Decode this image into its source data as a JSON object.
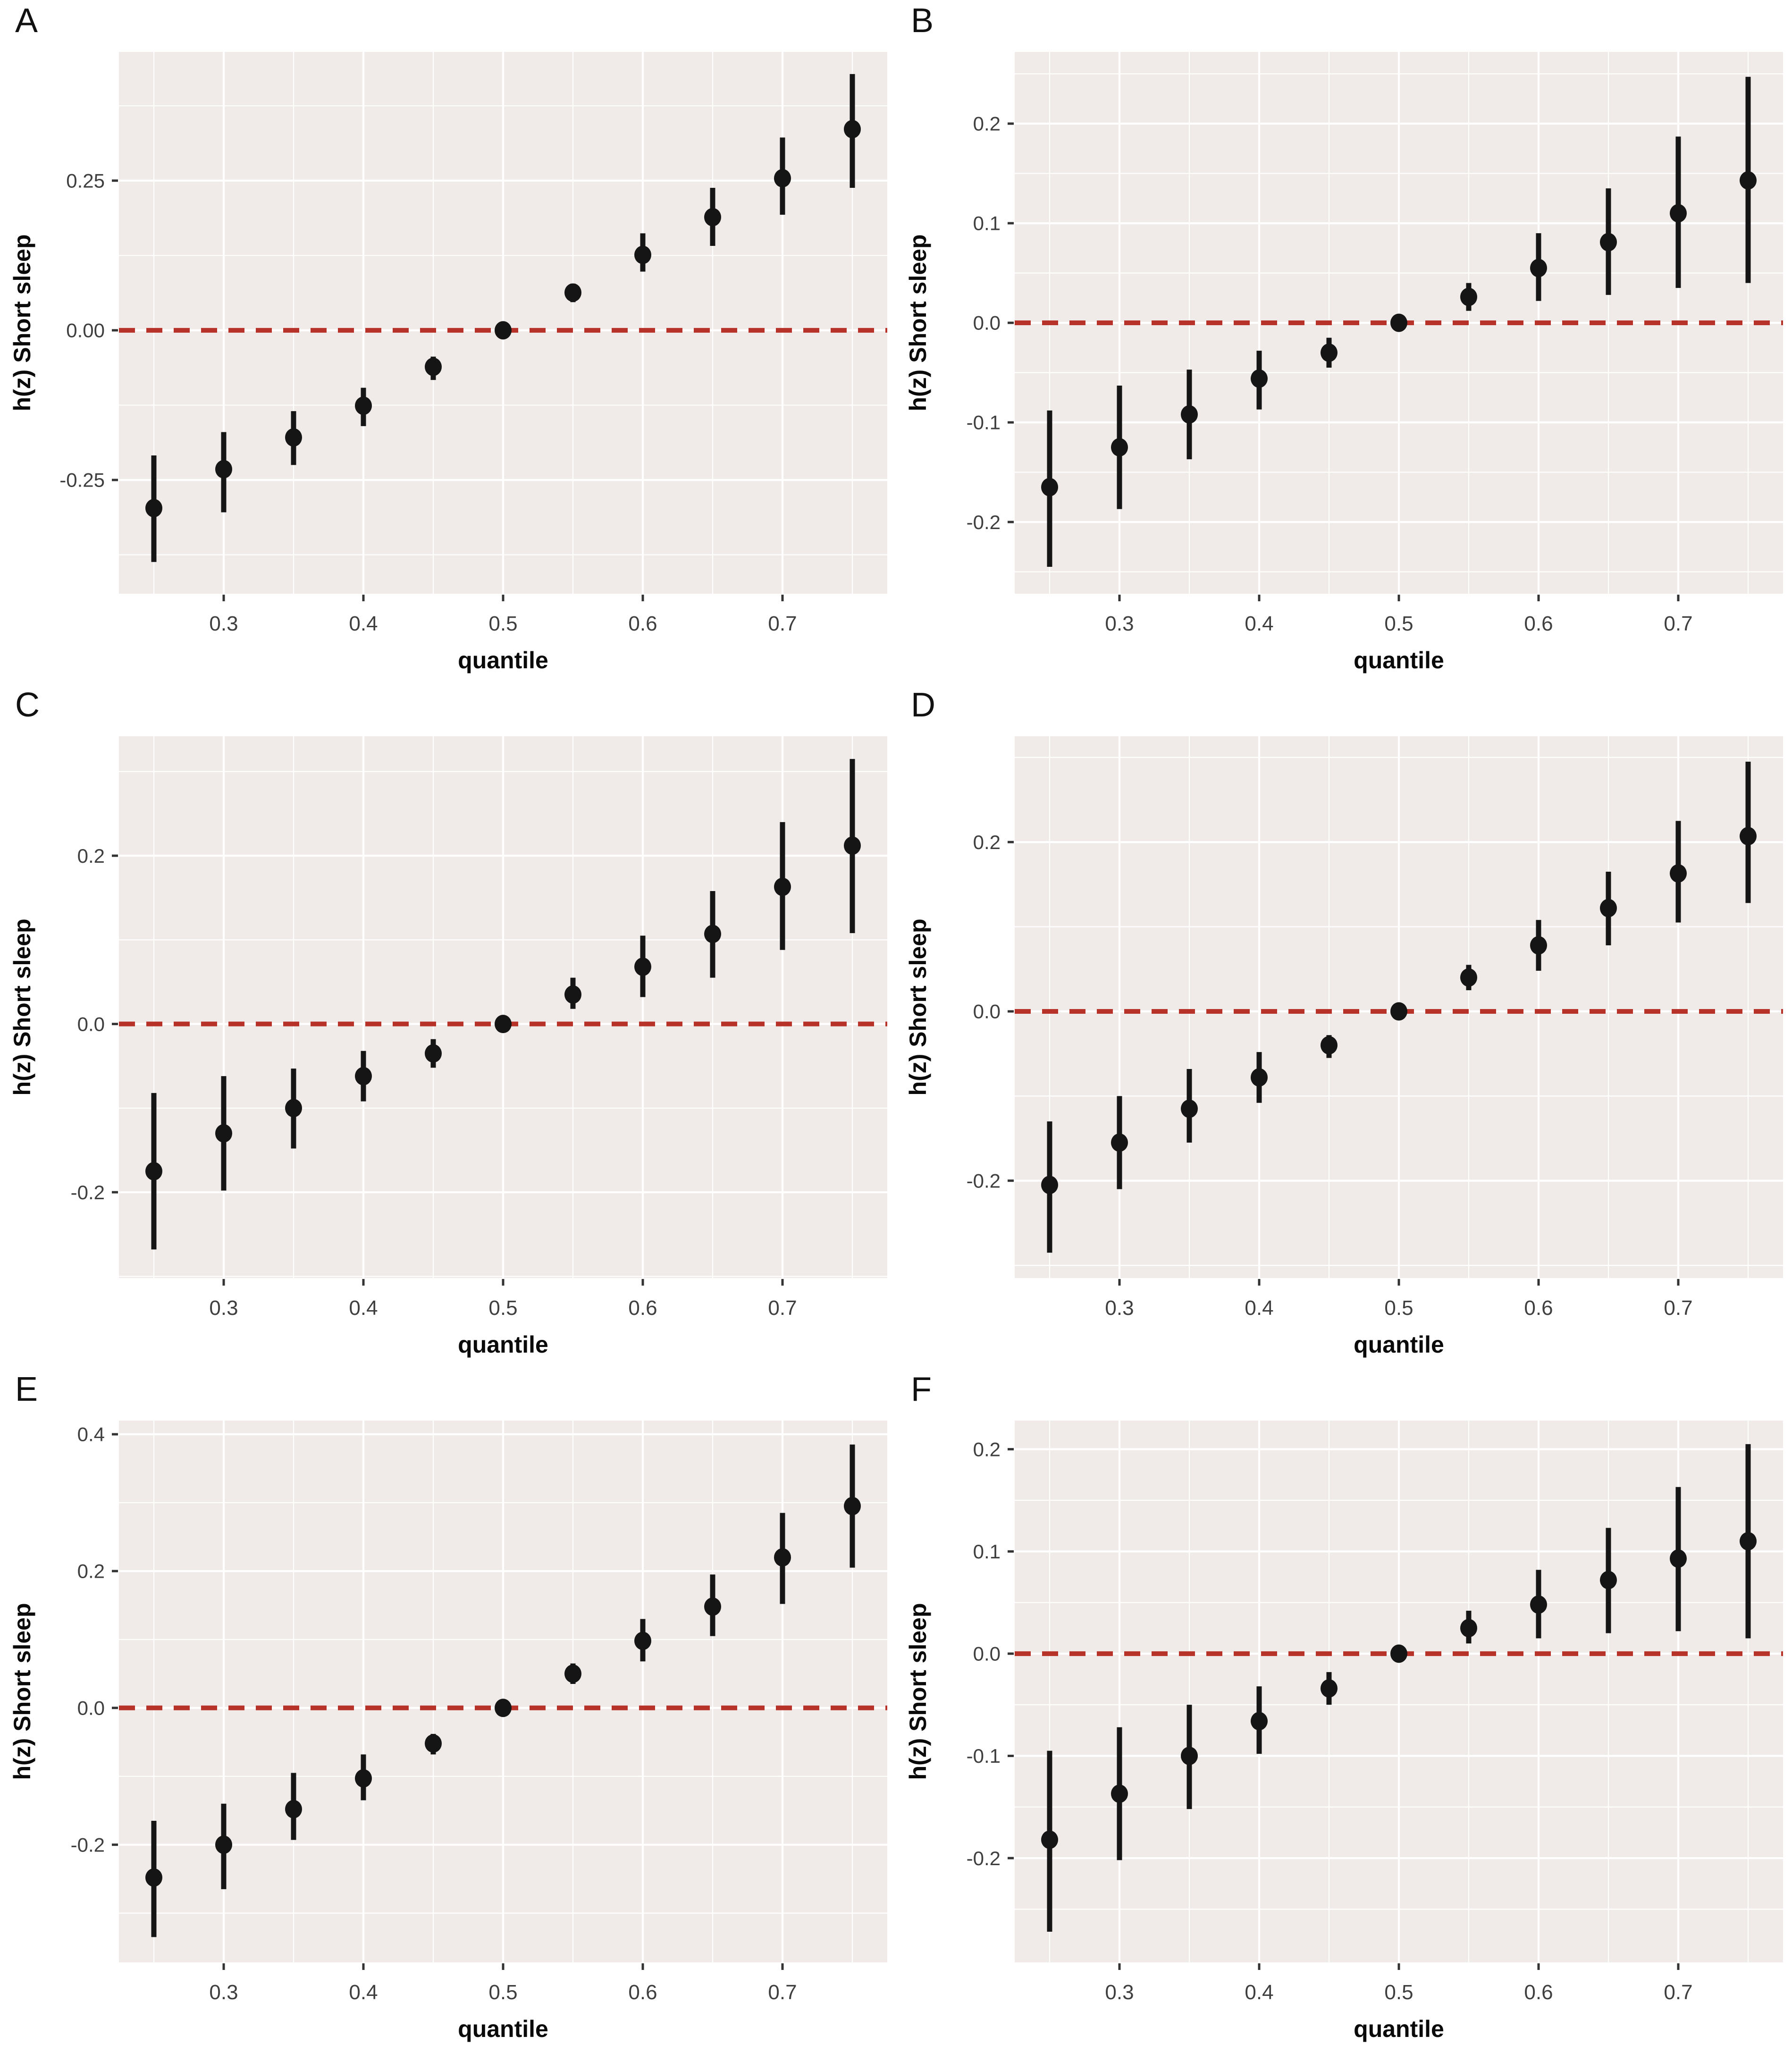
{
  "figure": {
    "title": "",
    "layout": "2x3-grid-of-quantile-pointrange-plots"
  },
  "style": {
    "page_background": "#ffffff",
    "panel_background": "#f0ebe8",
    "grid_color": "#ffffff",
    "point_color": "#151515",
    "errorbar_color": "#151515",
    "refline_color": "#b73228",
    "tick_mark_color": "#333333",
    "tick_label_color": "#3f3f3f",
    "axis_title_color": "#0a0a0a",
    "panel_letter_color": "#111111"
  },
  "chart_data": [
    {
      "type": "scatter",
      "panel": "A",
      "title": "",
      "xlabel": "quantile",
      "ylabel": "h(z) Short sleep",
      "legend": "none",
      "grid": true,
      "refline_y": 0,
      "refline_style": "dashed-red",
      "x": [
        0.25,
        0.3,
        0.35,
        0.4,
        0.45,
        0.5,
        0.55,
        0.6,
        0.65,
        0.7,
        0.75
      ],
      "y": [
        -0.297,
        -0.232,
        -0.179,
        -0.126,
        -0.061,
        0.0,
        0.063,
        0.126,
        0.189,
        0.254,
        0.336
      ],
      "y_lower": [
        -0.387,
        -0.304,
        -0.225,
        -0.16,
        -0.083,
        -0.004,
        0.047,
        0.098,
        0.141,
        0.193,
        0.238
      ],
      "y_upper": [
        -0.209,
        -0.17,
        -0.135,
        -0.096,
        -0.044,
        0.004,
        0.078,
        0.162,
        0.238,
        0.322,
        0.428
      ],
      "xlim": [
        0.225,
        0.775
      ],
      "ylim": [
        -0.44,
        0.465
      ],
      "x_ticks": [
        0.3,
        0.4,
        0.5,
        0.6,
        0.7
      ],
      "x_tick_labels": [
        "0.3",
        "0.4",
        "0.5",
        "0.6",
        "0.7"
      ],
      "x_minor": [
        0.25,
        0.35,
        0.45,
        0.55,
        0.65,
        0.75
      ],
      "y_ticks": [
        -0.25,
        0.0,
        0.25
      ],
      "y_tick_labels": [
        "-0.25",
        "0.00",
        "0.25"
      ]
    },
    {
      "type": "scatter",
      "panel": "B",
      "title": "",
      "xlabel": "quantile",
      "ylabel": "h(z) Short sleep",
      "legend": "none",
      "grid": true,
      "refline_y": 0,
      "refline_style": "dashed-red",
      "x": [
        0.25,
        0.3,
        0.35,
        0.4,
        0.45,
        0.5,
        0.55,
        0.6,
        0.65,
        0.7,
        0.75
      ],
      "y": [
        -0.165,
        -0.125,
        -0.092,
        -0.056,
        -0.03,
        0.0,
        0.026,
        0.055,
        0.081,
        0.11,
        0.143
      ],
      "y_lower": [
        -0.245,
        -0.187,
        -0.137,
        -0.087,
        -0.045,
        -0.003,
        0.012,
        0.022,
        0.028,
        0.035,
        0.04
      ],
      "y_upper": [
        -0.088,
        -0.063,
        -0.047,
        -0.028,
        -0.015,
        0.003,
        0.04,
        0.09,
        0.135,
        0.187,
        0.247
      ],
      "xlim": [
        0.225,
        0.775
      ],
      "ylim": [
        -0.272,
        0.272
      ],
      "x_ticks": [
        0.3,
        0.4,
        0.5,
        0.6,
        0.7
      ],
      "x_tick_labels": [
        "0.3",
        "0.4",
        "0.5",
        "0.6",
        "0.7"
      ],
      "x_minor": [
        0.25,
        0.35,
        0.45,
        0.55,
        0.65,
        0.75
      ],
      "y_ticks": [
        -0.2,
        -0.1,
        0.0,
        0.1,
        0.2
      ],
      "y_tick_labels": [
        "-0.2",
        "-0.1",
        "0.0",
        "0.1",
        "0.2"
      ]
    },
    {
      "type": "scatter",
      "panel": "C",
      "title": "",
      "xlabel": "quantile",
      "ylabel": "h(z) Short sleep",
      "legend": "none",
      "grid": true,
      "refline_y": 0,
      "refline_style": "dashed-red",
      "x": [
        0.25,
        0.3,
        0.35,
        0.4,
        0.45,
        0.5,
        0.55,
        0.6,
        0.65,
        0.7,
        0.75
      ],
      "y": [
        -0.175,
        -0.13,
        -0.1,
        -0.062,
        -0.035,
        0.0,
        0.035,
        0.068,
        0.107,
        0.163,
        0.212
      ],
      "y_lower": [
        -0.268,
        -0.198,
        -0.148,
        -0.092,
        -0.052,
        -0.003,
        0.018,
        0.032,
        0.055,
        0.088,
        0.108
      ],
      "y_upper": [
        -0.082,
        -0.062,
        -0.053,
        -0.032,
        -0.018,
        0.003,
        0.055,
        0.105,
        0.158,
        0.24,
        0.315
      ],
      "xlim": [
        0.225,
        0.775
      ],
      "ylim": [
        -0.302,
        0.342
      ],
      "x_ticks": [
        0.3,
        0.4,
        0.5,
        0.6,
        0.7
      ],
      "x_tick_labels": [
        "0.3",
        "0.4",
        "0.5",
        "0.6",
        "0.7"
      ],
      "x_minor": [
        0.25,
        0.35,
        0.45,
        0.55,
        0.65,
        0.75
      ],
      "y_ticks": [
        -0.2,
        0.0,
        0.2
      ],
      "y_tick_labels": [
        "-0.2",
        "0.0",
        "0.2"
      ]
    },
    {
      "type": "scatter",
      "panel": "D",
      "title": "",
      "xlabel": "quantile",
      "ylabel": "h(z) Short sleep",
      "legend": "none",
      "grid": true,
      "refline_y": 0,
      "refline_style": "dashed-red",
      "x": [
        0.25,
        0.3,
        0.35,
        0.4,
        0.45,
        0.5,
        0.55,
        0.6,
        0.65,
        0.7,
        0.75
      ],
      "y": [
        -0.205,
        -0.155,
        -0.115,
        -0.078,
        -0.04,
        0.0,
        0.04,
        0.078,
        0.122,
        0.163,
        0.207
      ],
      "y_lower": [
        -0.285,
        -0.21,
        -0.155,
        -0.108,
        -0.055,
        -0.004,
        0.025,
        0.048,
        0.078,
        0.105,
        0.128
      ],
      "y_upper": [
        -0.13,
        -0.1,
        -0.068,
        -0.048,
        -0.028,
        0.004,
        0.055,
        0.108,
        0.165,
        0.225,
        0.295
      ],
      "xlim": [
        0.225,
        0.775
      ],
      "ylim": [
        -0.315,
        0.325
      ],
      "x_ticks": [
        0.3,
        0.4,
        0.5,
        0.6,
        0.7
      ],
      "x_tick_labels": [
        "0.3",
        "0.4",
        "0.5",
        "0.6",
        "0.7"
      ],
      "x_minor": [
        0.25,
        0.35,
        0.45,
        0.55,
        0.65,
        0.75
      ],
      "y_ticks": [
        -0.2,
        0.0,
        0.2
      ],
      "y_tick_labels": [
        "-0.2",
        "0.0",
        "0.2"
      ]
    },
    {
      "type": "scatter",
      "panel": "E",
      "title": "",
      "xlabel": "quantile",
      "ylabel": "h(z) Short sleep",
      "legend": "none",
      "grid": true,
      "refline_y": 0,
      "refline_style": "dashed-red",
      "x": [
        0.25,
        0.3,
        0.35,
        0.4,
        0.45,
        0.5,
        0.55,
        0.6,
        0.65,
        0.7,
        0.75
      ],
      "y": [
        -0.248,
        -0.2,
        -0.148,
        -0.103,
        -0.052,
        0.0,
        0.05,
        0.098,
        0.148,
        0.22,
        0.295
      ],
      "y_lower": [
        -0.335,
        -0.265,
        -0.193,
        -0.135,
        -0.068,
        -0.004,
        0.035,
        0.068,
        0.105,
        0.152,
        0.205
      ],
      "y_upper": [
        -0.165,
        -0.14,
        -0.095,
        -0.068,
        -0.038,
        0.004,
        0.065,
        0.13,
        0.195,
        0.285,
        0.385
      ],
      "xlim": [
        0.225,
        0.775
      ],
      "ylim": [
        -0.372,
        0.42
      ],
      "x_ticks": [
        0.3,
        0.4,
        0.5,
        0.6,
        0.7
      ],
      "x_tick_labels": [
        "0.3",
        "0.4",
        "0.5",
        "0.6",
        "0.7"
      ],
      "x_minor": [
        0.25,
        0.35,
        0.45,
        0.55,
        0.65,
        0.75
      ],
      "y_ticks": [
        -0.2,
        0.0,
        0.2,
        0.4
      ],
      "y_tick_labels": [
        "-0.2",
        "0.0",
        "0.2",
        "0.4"
      ]
    },
    {
      "type": "scatter",
      "panel": "F",
      "title": "",
      "xlabel": "quantile",
      "ylabel": "h(z) Short sleep",
      "legend": "none",
      "grid": true,
      "refline_y": 0,
      "refline_style": "dashed-red",
      "x": [
        0.25,
        0.3,
        0.35,
        0.4,
        0.45,
        0.5,
        0.55,
        0.6,
        0.65,
        0.7,
        0.75
      ],
      "y": [
        -0.182,
        -0.137,
        -0.1,
        -0.066,
        -0.034,
        0.0,
        0.025,
        0.048,
        0.072,
        0.093,
        0.11
      ],
      "y_lower": [
        -0.272,
        -0.202,
        -0.152,
        -0.098,
        -0.05,
        -0.003,
        0.01,
        0.015,
        0.02,
        0.022,
        0.015
      ],
      "y_upper": [
        -0.095,
        -0.072,
        -0.05,
        -0.032,
        -0.018,
        0.003,
        0.042,
        0.082,
        0.123,
        0.163,
        0.205
      ],
      "xlim": [
        0.225,
        0.775
      ],
      "ylim": [
        -0.302,
        0.228
      ],
      "x_ticks": [
        0.3,
        0.4,
        0.5,
        0.6,
        0.7
      ],
      "x_tick_labels": [
        "0.3",
        "0.4",
        "0.5",
        "0.6",
        "0.7"
      ],
      "x_minor": [
        0.25,
        0.35,
        0.45,
        0.55,
        0.65,
        0.75
      ],
      "y_ticks": [
        -0.2,
        -0.1,
        0.0,
        0.1,
        0.2
      ],
      "y_tick_labels": [
        "-0.2",
        "-0.1",
        "0.0",
        "0.1",
        "0.2"
      ]
    }
  ]
}
